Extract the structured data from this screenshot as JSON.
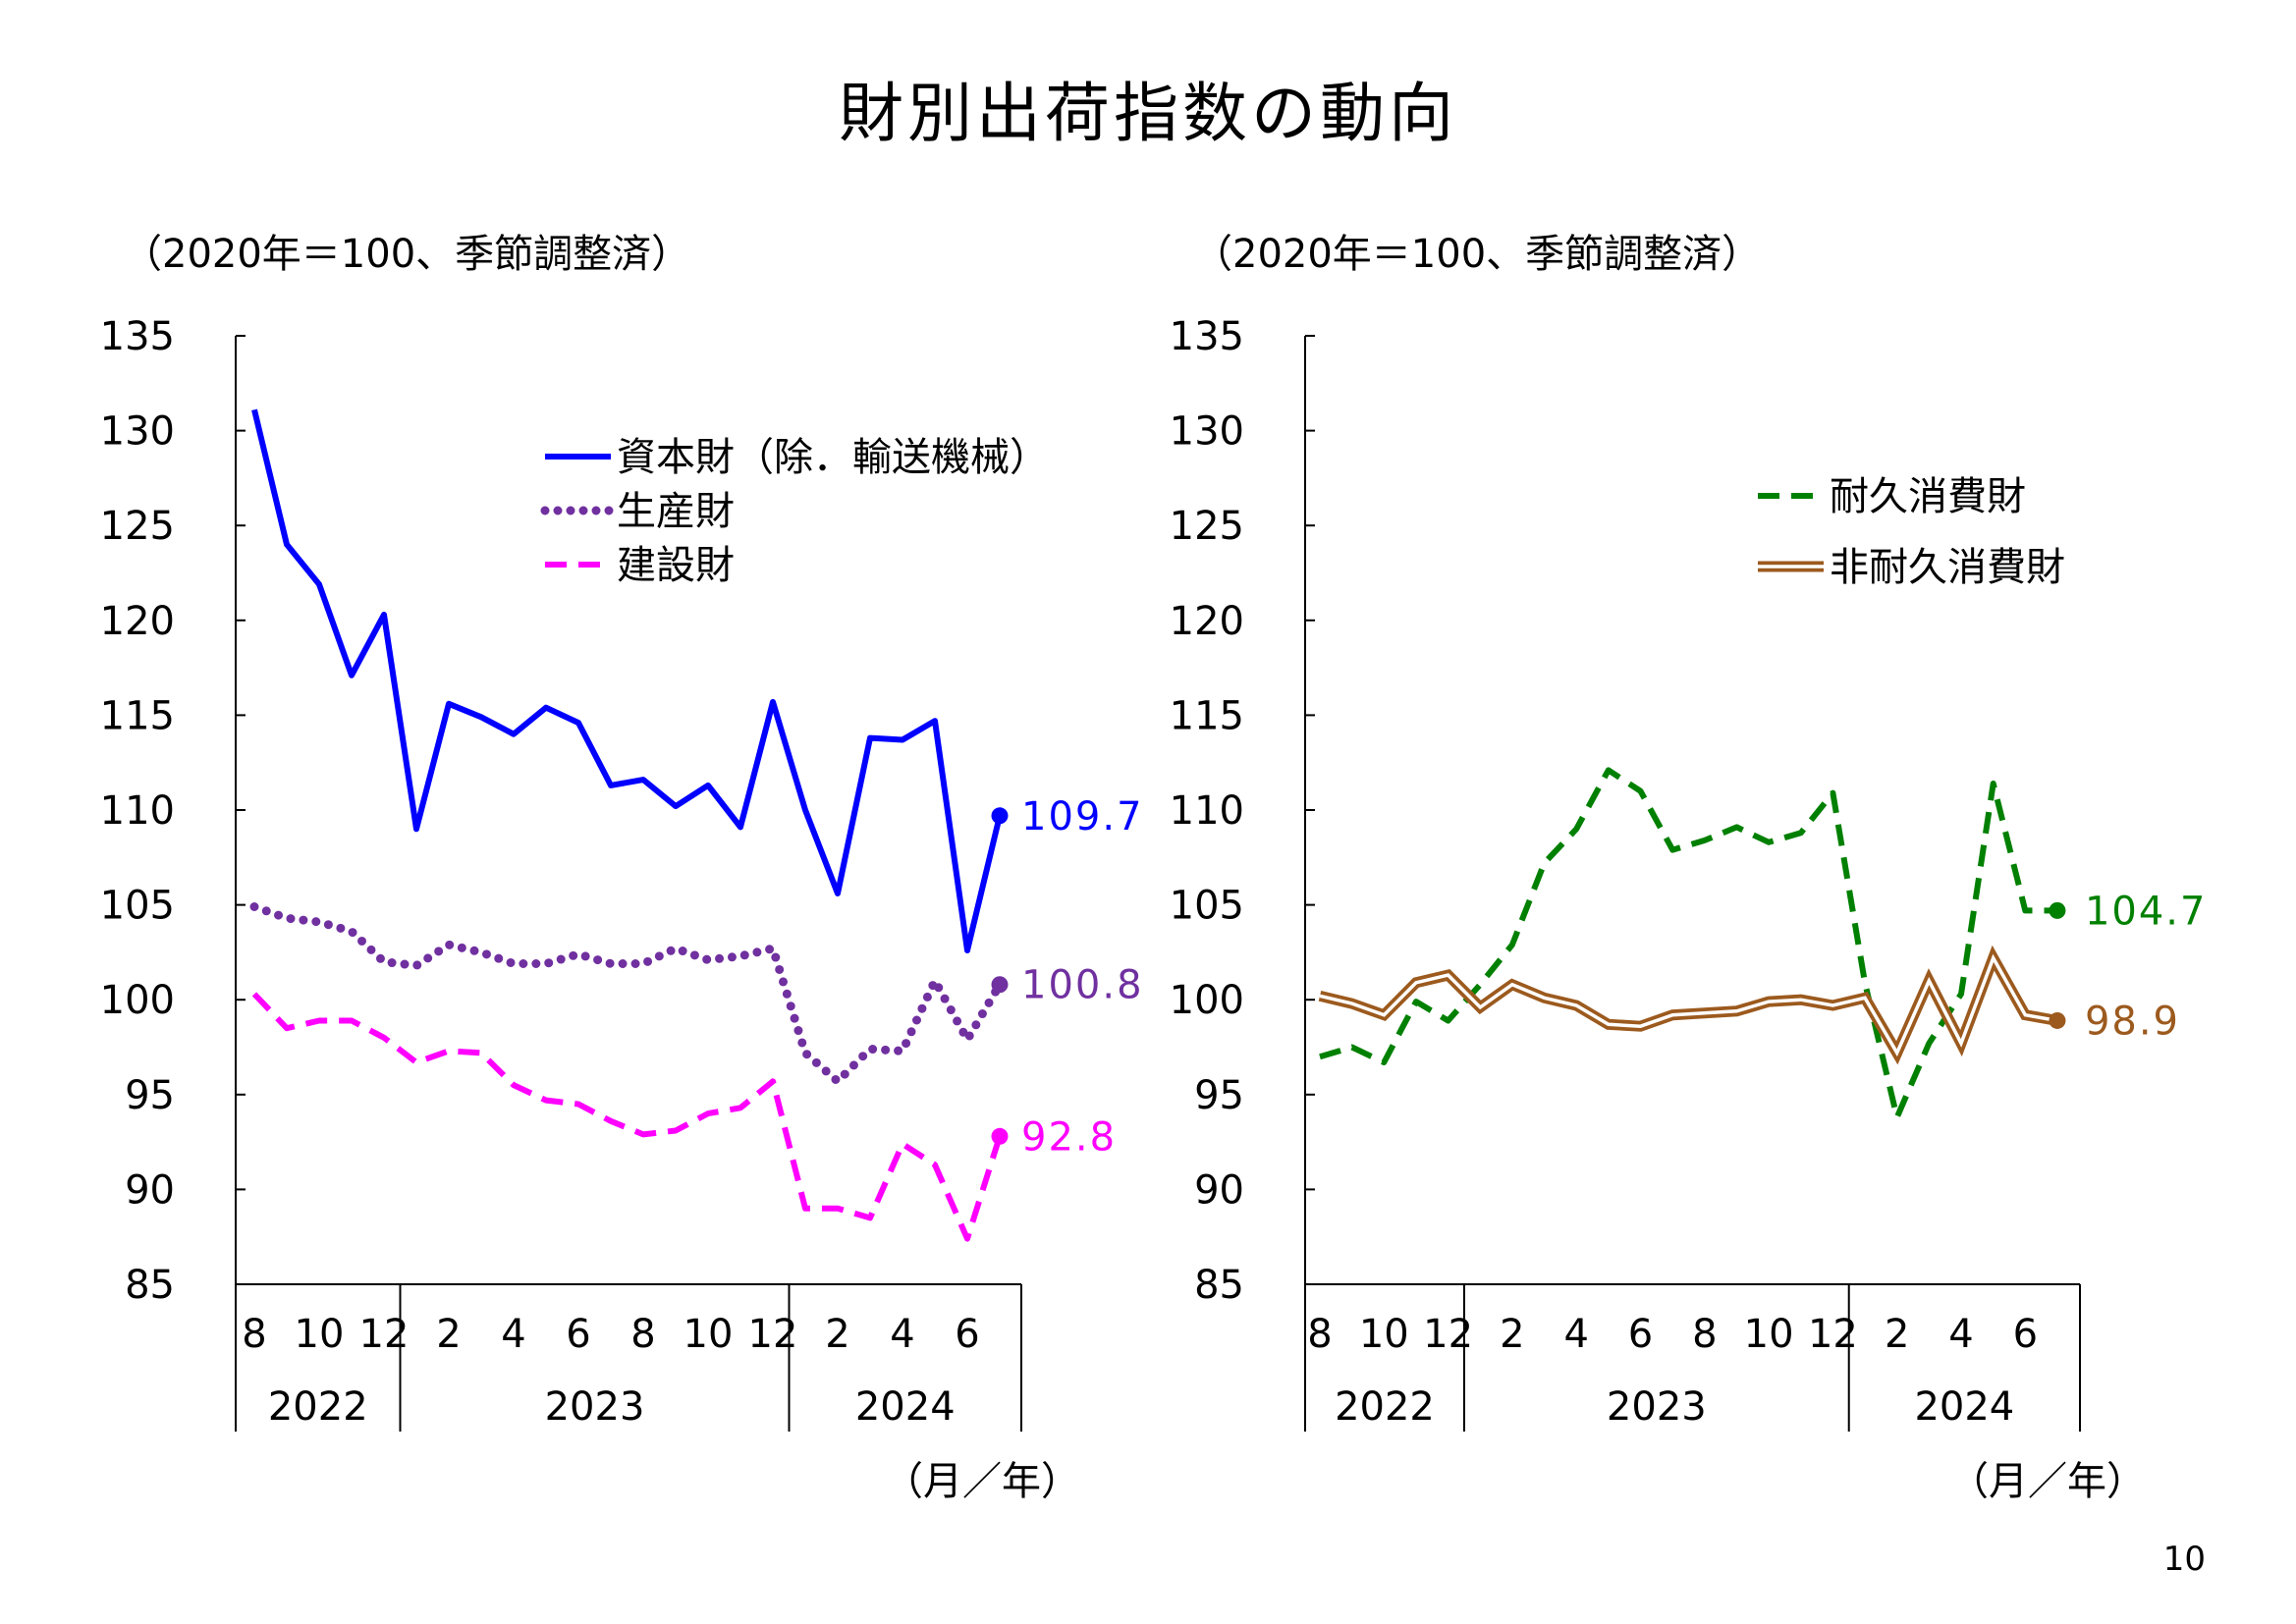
{
  "page": {
    "title": "財別出荷指数の動向",
    "page_number": "10"
  },
  "chart_data": [
    {
      "type": "line",
      "unit_note": "（2020年＝100、季節調整済）",
      "x_note": "（月／年）",
      "ylim": [
        85,
        135
      ],
      "yticks": [
        "85",
        "90",
        "95",
        "100",
        "105",
        "110",
        "115",
        "120",
        "125",
        "130",
        "135"
      ],
      "month_labels": [
        "8",
        "10",
        "12",
        "2",
        "4",
        "6",
        "8",
        "10",
        "12",
        "2",
        "4",
        "6"
      ],
      "year_labels": [
        "2022",
        "2023",
        "2024"
      ],
      "x": [
        "2022-08",
        "2022-09",
        "2022-10",
        "2022-11",
        "2022-12",
        "2023-01",
        "2023-02",
        "2023-03",
        "2023-04",
        "2023-05",
        "2023-06",
        "2023-07",
        "2023-08",
        "2023-09",
        "2023-10",
        "2023-11",
        "2023-12",
        "2024-01",
        "2024-02",
        "2024-03",
        "2024-04",
        "2024-05",
        "2024-06",
        "2024-07"
      ],
      "series": [
        {
          "name": "資本財（除．輸送機械）",
          "color": "#0000ff",
          "style": "solid",
          "values": [
            131.1,
            124.0,
            121.9,
            117.1,
            120.3,
            109.0,
            115.6,
            114.9,
            114.0,
            115.4,
            114.6,
            111.3,
            111.6,
            110.2,
            111.3,
            109.1,
            115.7,
            110.0,
            105.6,
            113.8,
            113.7,
            114.7,
            102.6,
            109.7
          ],
          "end_label": "109.7"
        },
        {
          "name": "生産財",
          "color": "#7030a0",
          "style": "dotted",
          "values": [
            104.9,
            104.3,
            104.1,
            103.6,
            102.0,
            101.8,
            102.9,
            102.5,
            101.9,
            101.9,
            102.4,
            101.9,
            101.9,
            102.7,
            102.1,
            102.3,
            102.7,
            97.2,
            95.7,
            97.4,
            97.3,
            101.0,
            97.9,
            100.8
          ],
          "end_label": "100.8"
        },
        {
          "name": "建設財",
          "color": "#ff00ff",
          "style": "dashed",
          "values": [
            100.3,
            98.5,
            98.9,
            98.9,
            98.0,
            96.7,
            97.3,
            97.2,
            95.5,
            94.7,
            94.5,
            93.6,
            92.9,
            93.1,
            94.0,
            94.3,
            95.7,
            89.0,
            89.0,
            88.5,
            92.4,
            91.3,
            87.4,
            92.8
          ],
          "end_label": "92.8"
        }
      ]
    },
    {
      "type": "line",
      "unit_note": "（2020年＝100、季節調整済）",
      "x_note": "（月／年）",
      "ylim": [
        85,
        135
      ],
      "yticks": [
        "85",
        "90",
        "95",
        "100",
        "105",
        "110",
        "115",
        "120",
        "125",
        "130",
        "135"
      ],
      "month_labels": [
        "8",
        "10",
        "12",
        "2",
        "4",
        "6",
        "8",
        "10",
        "12",
        "2",
        "4",
        "6"
      ],
      "year_labels": [
        "2022",
        "2023",
        "2024"
      ],
      "x": [
        "2022-08",
        "2022-09",
        "2022-10",
        "2022-11",
        "2022-12",
        "2023-01",
        "2023-02",
        "2023-03",
        "2023-04",
        "2023-05",
        "2023-06",
        "2023-07",
        "2023-08",
        "2023-09",
        "2023-10",
        "2023-11",
        "2023-12",
        "2024-01",
        "2024-02",
        "2024-03",
        "2024-04",
        "2024-05",
        "2024-06",
        "2024-07"
      ],
      "series": [
        {
          "name": "耐久消費財",
          "color": "#008000",
          "style": "dashed",
          "values": [
            97.0,
            97.5,
            96.7,
            99.9,
            98.9,
            100.8,
            102.9,
            107.2,
            109.0,
            112.1,
            111.0,
            107.9,
            108.4,
            109.1,
            108.3,
            108.8,
            110.9,
            100.9,
            93.8,
            97.7,
            100.3,
            111.4,
            104.7,
            104.7
          ],
          "end_label": "104.7"
        },
        {
          "name": "非耐久消費財",
          "color": "#9c5a1e",
          "style": "double",
          "values": [
            100.2,
            99.8,
            99.2,
            100.9,
            101.3,
            99.6,
            100.8,
            100.1,
            99.7,
            98.7,
            98.6,
            99.2,
            99.3,
            99.4,
            99.9,
            100.0,
            99.7,
            100.1,
            97.2,
            101.0,
            97.7,
            102.2,
            99.2,
            98.9
          ],
          "end_label": "98.9"
        }
      ]
    }
  ]
}
